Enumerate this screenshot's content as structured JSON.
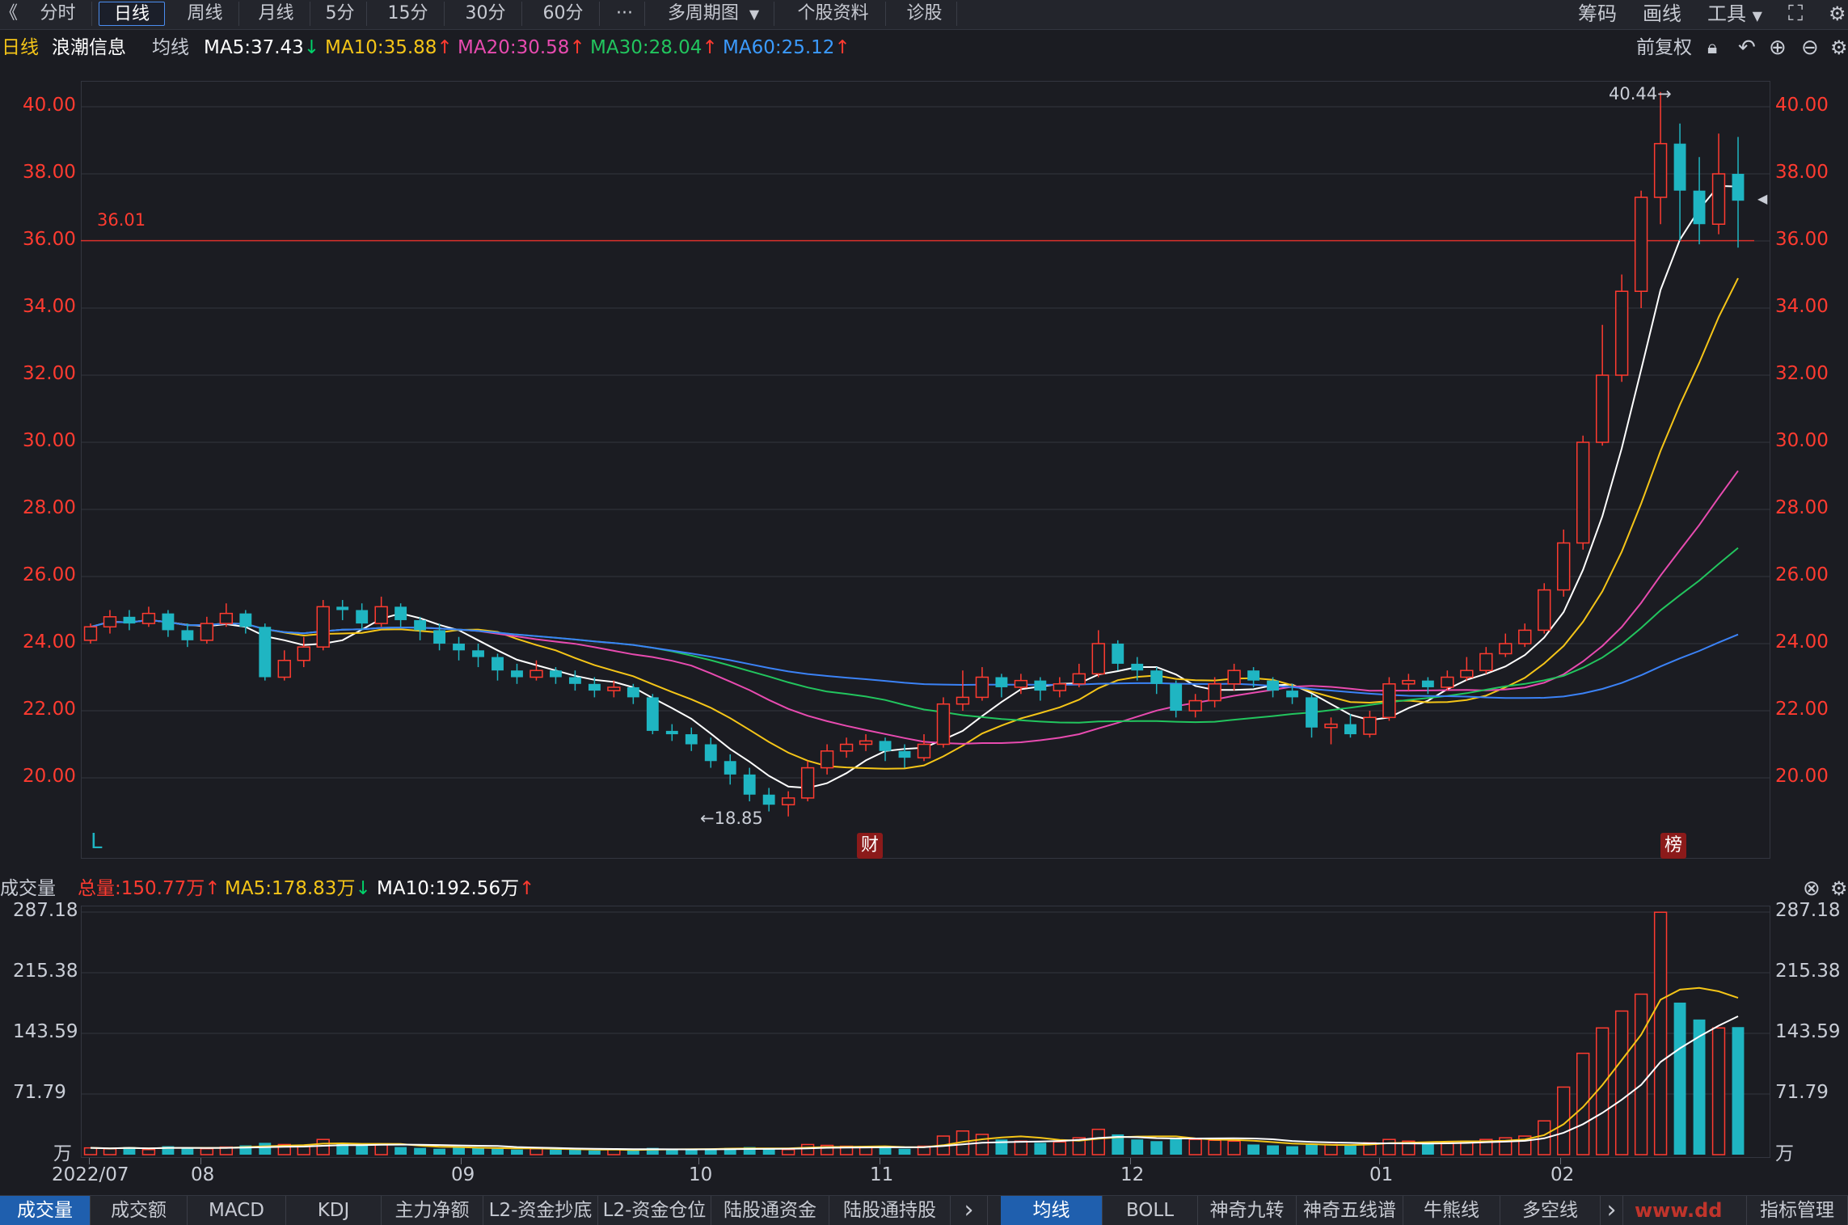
{
  "toolbar": {
    "back_glyph": "《",
    "tabs": [
      "分时",
      "日线",
      "周线",
      "月线",
      "5分",
      "15分",
      "30分",
      "60分",
      "···",
      "多周期图",
      "个股资料",
      "诊股"
    ],
    "active_tab": "日线",
    "right_items": [
      "筹码",
      "画线",
      "工具"
    ]
  },
  "info": {
    "period": "日线",
    "stock_name": "浪潮信息",
    "ma_label": "均线",
    "ma5": "MA5:37.43",
    "ma10": "MA10:35.88",
    "ma20": "MA20:30.58",
    "ma30": "MA30:28.04",
    "ma60": "MA60:25.12",
    "adjust": "前复权"
  },
  "colors": {
    "up": "#ff3b30",
    "down": "#1fb5c2",
    "ma5": "#ffffff",
    "ma10": "#f5c518",
    "ma20": "#e84bb0",
    "ma30": "#22c55e",
    "ma60": "#3b82f6",
    "grid": "#33363f"
  },
  "price_axis": [
    "40.00",
    "38.00",
    "36.00",
    "34.00",
    "32.00",
    "30.00",
    "28.00",
    "26.00",
    "24.00",
    "22.00",
    "20.00"
  ],
  "annotations": {
    "high": "40.44→",
    "low": "←18.85",
    "line_value": "36.01",
    "letter_l": "L",
    "badge_cai": "财",
    "badge_bang": "榜"
  },
  "volume": {
    "label": "成交量",
    "total": "总量:150.77万",
    "ma5": "MA5:178.83万",
    "ma10": "MA10:192.56万",
    "axis": [
      "287.18",
      "215.38",
      "143.59",
      "71.79",
      "万"
    ]
  },
  "x_axis": [
    "2022/07",
    "08",
    "09",
    "10",
    "11",
    "12",
    "01",
    "02"
  ],
  "bottom_tabs_left": [
    "成交量",
    "成交额",
    "MACD",
    "KDJ",
    "主力净额",
    "L2-资金抄底",
    "L2-资金仓位",
    "陆股通资金",
    "陆股通持股"
  ],
  "bottom_tabs_right": [
    "均线",
    "BOLL",
    "神奇九转",
    "神奇五线谱",
    "牛熊线",
    "多空线"
  ],
  "bottom_right": "指标管理",
  "watermark": "www.dd",
  "chart_data": {
    "type": "candlestick",
    "ylim": [
      18,
      41
    ],
    "high_point": 40.44,
    "low_point": 18.85,
    "hline": 36.01,
    "candles": [
      [
        24.1,
        24.5,
        24.6,
        24.0
      ],
      [
        24.5,
        24.8,
        25.0,
        24.3
      ],
      [
        24.8,
        24.6,
        25.0,
        24.4
      ],
      [
        24.6,
        24.9,
        25.1,
        24.5
      ],
      [
        24.9,
        24.4,
        25.0,
        24.2
      ],
      [
        24.4,
        24.1,
        24.6,
        23.9
      ],
      [
        24.1,
        24.6,
        24.8,
        24.0
      ],
      [
        24.6,
        24.9,
        25.2,
        24.5
      ],
      [
        24.9,
        24.5,
        25.0,
        24.3
      ],
      [
        24.5,
        23.0,
        24.6,
        22.9
      ],
      [
        23.0,
        23.5,
        23.8,
        22.9
      ],
      [
        23.5,
        23.9,
        24.2,
        23.3
      ],
      [
        23.9,
        25.1,
        25.3,
        23.8
      ],
      [
        25.1,
        25.0,
        25.3,
        24.7
      ],
      [
        25.0,
        24.6,
        25.2,
        24.4
      ],
      [
        24.6,
        25.1,
        25.4,
        24.5
      ],
      [
        25.1,
        24.7,
        25.2,
        24.5
      ],
      [
        24.7,
        24.4,
        24.8,
        24.1
      ],
      [
        24.4,
        24.0,
        24.6,
        23.8
      ],
      [
        24.0,
        23.8,
        24.2,
        23.5
      ],
      [
        23.8,
        23.6,
        24.0,
        23.3
      ],
      [
        23.6,
        23.2,
        23.7,
        22.9
      ],
      [
        23.2,
        23.0,
        23.4,
        22.8
      ],
      [
        23.0,
        23.2,
        23.5,
        22.9
      ],
      [
        23.2,
        23.0,
        23.3,
        22.8
      ],
      [
        23.0,
        22.8,
        23.2,
        22.6
      ],
      [
        22.8,
        22.6,
        23.0,
        22.4
      ],
      [
        22.6,
        22.7,
        22.9,
        22.4
      ],
      [
        22.7,
        22.4,
        22.8,
        22.2
      ],
      [
        22.4,
        21.4,
        22.5,
        21.3
      ],
      [
        21.4,
        21.3,
        21.6,
        21.1
      ],
      [
        21.3,
        21.0,
        21.5,
        20.8
      ],
      [
        21.0,
        20.5,
        21.2,
        20.3
      ],
      [
        20.5,
        20.1,
        20.7,
        19.8
      ],
      [
        20.1,
        19.5,
        20.3,
        19.3
      ],
      [
        19.5,
        19.2,
        19.7,
        19.0
      ],
      [
        19.2,
        19.4,
        19.6,
        18.85
      ],
      [
        19.4,
        20.3,
        20.5,
        19.3
      ],
      [
        20.3,
        20.8,
        21.0,
        20.1
      ],
      [
        20.8,
        21.0,
        21.2,
        20.6
      ],
      [
        21.0,
        21.1,
        21.3,
        20.8
      ],
      [
        21.1,
        20.8,
        21.2,
        20.5
      ],
      [
        20.8,
        20.6,
        21.0,
        20.3
      ],
      [
        20.6,
        21.0,
        21.3,
        20.5
      ],
      [
        21.0,
        22.2,
        22.4,
        20.9
      ],
      [
        22.2,
        22.4,
        23.2,
        22.0
      ],
      [
        22.4,
        23.0,
        23.3,
        22.3
      ],
      [
        23.0,
        22.7,
        23.1,
        22.4
      ],
      [
        22.7,
        22.9,
        23.1,
        22.5
      ],
      [
        22.9,
        22.6,
        23.0,
        22.3
      ],
      [
        22.6,
        22.8,
        23.0,
        22.4
      ],
      [
        22.8,
        23.1,
        23.4,
        22.7
      ],
      [
        23.1,
        24.0,
        24.4,
        23.0
      ],
      [
        24.0,
        23.4,
        24.1,
        23.2
      ],
      [
        23.4,
        23.2,
        23.6,
        22.9
      ],
      [
        23.2,
        22.8,
        23.3,
        22.5
      ],
      [
        22.8,
        22.0,
        22.9,
        21.8
      ],
      [
        22.0,
        22.3,
        22.5,
        21.8
      ],
      [
        22.3,
        22.8,
        23.0,
        22.1
      ],
      [
        22.8,
        23.2,
        23.4,
        22.6
      ],
      [
        23.2,
        22.9,
        23.3,
        22.7
      ],
      [
        22.9,
        22.6,
        23.0,
        22.4
      ],
      [
        22.6,
        22.4,
        22.8,
        22.2
      ],
      [
        22.4,
        21.5,
        22.5,
        21.2
      ],
      [
        21.5,
        21.6,
        21.8,
        21.0
      ],
      [
        21.6,
        21.3,
        21.9,
        21.2
      ],
      [
        21.3,
        21.8,
        22.0,
        21.2
      ],
      [
        21.8,
        22.8,
        23.0,
        21.7
      ],
      [
        22.8,
        22.9,
        23.1,
        22.6
      ],
      [
        22.9,
        22.7,
        23.0,
        22.5
      ],
      [
        22.7,
        23.0,
        23.2,
        22.6
      ],
      [
        23.0,
        23.2,
        23.6,
        22.9
      ],
      [
        23.2,
        23.7,
        23.9,
        23.1
      ],
      [
        23.7,
        24.0,
        24.3,
        23.6
      ],
      [
        24.0,
        24.4,
        24.6,
        23.9
      ],
      [
        24.4,
        25.6,
        25.8,
        24.3
      ],
      [
        25.6,
        27.0,
        27.4,
        25.4
      ],
      [
        27.0,
        30.0,
        30.2,
        26.8
      ],
      [
        30.0,
        32.0,
        33.5,
        29.9
      ],
      [
        32.0,
        34.5,
        35.0,
        31.8
      ],
      [
        34.5,
        37.3,
        37.5,
        34.0
      ],
      [
        37.3,
        38.9,
        40.44,
        36.5
      ],
      [
        38.9,
        37.5,
        39.5,
        36.0
      ],
      [
        37.5,
        36.5,
        38.5,
        35.9
      ],
      [
        36.5,
        38.0,
        39.2,
        36.2
      ],
      [
        38.0,
        37.2,
        39.1,
        35.8
      ]
    ],
    "volumes": [
      8,
      7,
      9,
      6,
      10,
      8,
      7,
      9,
      11,
      14,
      12,
      10,
      18,
      13,
      11,
      12,
      9,
      8,
      7,
      9,
      8,
      7,
      6,
      7,
      6,
      6,
      5,
      6,
      5,
      8,
      7,
      6,
      7,
      8,
      9,
      7,
      6,
      12,
      11,
      10,
      9,
      8,
      7,
      10,
      22,
      28,
      24,
      18,
      16,
      14,
      15,
      20,
      30,
      24,
      18,
      16,
      20,
      18,
      17,
      16,
      12,
      11,
      10,
      13,
      12,
      11,
      14,
      18,
      16,
      15,
      14,
      16,
      18,
      20,
      22,
      40,
      80,
      120,
      150,
      170,
      190,
      287,
      180,
      160,
      150,
      151
    ]
  }
}
